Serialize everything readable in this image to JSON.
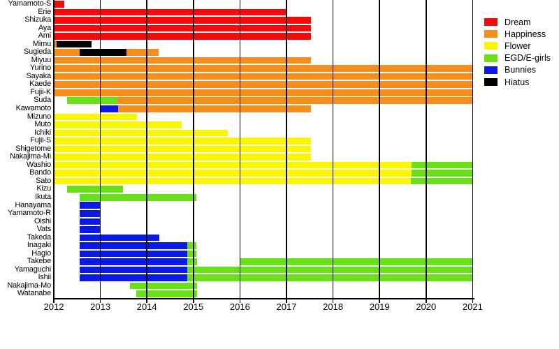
{
  "page": {
    "background": "#ffffff"
  },
  "chart_data": {
    "type": "gantt",
    "title": "",
    "x_axis": {
      "min": 2012,
      "max": 2021,
      "ticks": [
        2012,
        2013,
        2014,
        2015,
        2016,
        2017,
        2018,
        2019,
        2020,
        2021
      ]
    },
    "grid": true,
    "legend_position": "top-right",
    "legend": [
      {
        "label": "Dream",
        "color": "#f50a0a"
      },
      {
        "label": "Happiness",
        "color": "#f78d1b"
      },
      {
        "label": "Flower",
        "color": "#fcf500"
      },
      {
        "label": "EGD/E-girls",
        "color": "#69e117"
      },
      {
        "label": "Bunnies",
        "color": "#0a18e8"
      },
      {
        "label": "Hiatus",
        "color": "#000000"
      }
    ],
    "rows": [
      {
        "name": "Yamamoto-S",
        "segments": [
          {
            "group": "Dream",
            "start": 2012.0,
            "end": 2012.23
          }
        ]
      },
      {
        "name": "Erie",
        "segments": [
          {
            "group": "Dream",
            "start": 2012.0,
            "end": 2017.0
          }
        ]
      },
      {
        "name": "Shizuka",
        "segments": [
          {
            "group": "Dream",
            "start": 2012.0,
            "end": 2017.52
          }
        ]
      },
      {
        "name": "Aya",
        "segments": [
          {
            "group": "Dream",
            "start": 2012.0,
            "end": 2017.52
          }
        ]
      },
      {
        "name": "Ami",
        "segments": [
          {
            "group": "Dream",
            "start": 2012.0,
            "end": 2017.52
          }
        ]
      },
      {
        "name": "Mimu",
        "segments": [
          {
            "group": "Happiness",
            "start": 2012.0,
            "end": 2012.06
          },
          {
            "group": "Hiatus",
            "start": 2012.06,
            "end": 2012.81
          }
        ]
      },
      {
        "name": "Sugieda",
        "segments": [
          {
            "group": "Happiness",
            "start": 2012.0,
            "end": 2012.55
          },
          {
            "group": "Hiatus",
            "start": 2012.55,
            "end": 2013.56
          },
          {
            "group": "Happiness",
            "start": 2013.56,
            "end": 2014.25
          }
        ]
      },
      {
        "name": "Miyuu",
        "segments": [
          {
            "group": "Happiness",
            "start": 2012.0,
            "end": 2017.52
          }
        ]
      },
      {
        "name": "Yurino",
        "segments": [
          {
            "group": "Happiness",
            "start": 2012.0,
            "end": 2021.0
          }
        ]
      },
      {
        "name": "Sayaka",
        "segments": [
          {
            "group": "Happiness",
            "start": 2012.0,
            "end": 2021.0
          }
        ]
      },
      {
        "name": "Kaede",
        "segments": [
          {
            "group": "Happiness",
            "start": 2012.0,
            "end": 2021.0
          }
        ]
      },
      {
        "name": "Fujii-K",
        "segments": [
          {
            "group": "Happiness",
            "start": 2012.0,
            "end": 2021.0
          }
        ]
      },
      {
        "name": "Suda",
        "segments": [
          {
            "group": "EGD/E-girls",
            "start": 2012.29,
            "end": 2013.37
          },
          {
            "group": "Happiness",
            "start": 2013.37,
            "end": 2021.0
          }
        ]
      },
      {
        "name": "Kawamoto",
        "segments": [
          {
            "group": "Bunnies",
            "start": 2013.0,
            "end": 2013.38
          },
          {
            "group": "Happiness",
            "start": 2013.38,
            "end": 2017.52
          }
        ]
      },
      {
        "name": "Mizuno",
        "segments": [
          {
            "group": "Flower",
            "start": 2012.0,
            "end": 2013.79
          }
        ]
      },
      {
        "name": "Muto",
        "segments": [
          {
            "group": "Flower",
            "start": 2012.0,
            "end": 2014.75
          }
        ]
      },
      {
        "name": "Ichiki",
        "segments": [
          {
            "group": "Flower",
            "start": 2012.0,
            "end": 2015.74
          }
        ]
      },
      {
        "name": "Fujii-S",
        "segments": [
          {
            "group": "Flower",
            "start": 2012.0,
            "end": 2017.52
          }
        ]
      },
      {
        "name": "Shigetome",
        "segments": [
          {
            "group": "Flower",
            "start": 2012.0,
            "end": 2017.52
          }
        ]
      },
      {
        "name": "Nakajima-Mi",
        "segments": [
          {
            "group": "Flower",
            "start": 2012.0,
            "end": 2017.52
          }
        ]
      },
      {
        "name": "Washio",
        "segments": [
          {
            "group": "Flower",
            "start": 2012.0,
            "end": 2019.69
          },
          {
            "group": "EGD/E-girls",
            "start": 2019.69,
            "end": 2021.0
          }
        ]
      },
      {
        "name": "Bando",
        "segments": [
          {
            "group": "Flower",
            "start": 2012.0,
            "end": 2019.69
          },
          {
            "group": "EGD/E-girls",
            "start": 2019.69,
            "end": 2021.0
          }
        ]
      },
      {
        "name": "Sato",
        "segments": [
          {
            "group": "Flower",
            "start": 2012.0,
            "end": 2019.68
          },
          {
            "group": "EGD/E-girls",
            "start": 2019.68,
            "end": 2021.0
          }
        ]
      },
      {
        "name": "Kizu",
        "segments": [
          {
            "group": "EGD/E-girls",
            "start": 2012.29,
            "end": 2013.49
          }
        ]
      },
      {
        "name": "Ikuta",
        "segments": [
          {
            "group": "EGD/E-girls",
            "start": 2012.56,
            "end": 2015.06
          }
        ]
      },
      {
        "name": "Hanayama",
        "segments": [
          {
            "group": "Bunnies",
            "start": 2012.56,
            "end": 2013.01
          }
        ]
      },
      {
        "name": "Yamamoto-R",
        "segments": [
          {
            "group": "Bunnies",
            "start": 2012.56,
            "end": 2013.01
          }
        ]
      },
      {
        "name": "Oishi",
        "segments": [
          {
            "group": "Bunnies",
            "start": 2012.56,
            "end": 2013.01
          }
        ]
      },
      {
        "name": "Vats",
        "segments": [
          {
            "group": "Bunnies",
            "start": 2012.56,
            "end": 2013.01
          }
        ]
      },
      {
        "name": "Takeda",
        "segments": [
          {
            "group": "Bunnies",
            "start": 2012.56,
            "end": 2014.27
          }
        ]
      },
      {
        "name": "Inagaki",
        "segments": [
          {
            "group": "Bunnies",
            "start": 2012.56,
            "end": 2014.87
          },
          {
            "group": "EGD/E-girls",
            "start": 2014.87,
            "end": 2015.06
          }
        ]
      },
      {
        "name": "Hagio",
        "segments": [
          {
            "group": "Bunnies",
            "start": 2012.56,
            "end": 2014.87
          },
          {
            "group": "EGD/E-girls",
            "start": 2014.87,
            "end": 2015.06
          }
        ]
      },
      {
        "name": "Takebe",
        "segments": [
          {
            "group": "Bunnies",
            "start": 2012.56,
            "end": 2014.87
          },
          {
            "group": "EGD/E-girls",
            "start": 2014.87,
            "end": 2015.08
          },
          {
            "group": "EGD/E-girls",
            "start": 2016.0,
            "end": 2021.0
          }
        ]
      },
      {
        "name": "Yamaguchi",
        "segments": [
          {
            "group": "Bunnies",
            "start": 2012.56,
            "end": 2014.87
          },
          {
            "group": "EGD/E-girls",
            "start": 2014.87,
            "end": 2021.0
          }
        ]
      },
      {
        "name": "Ishii",
        "segments": [
          {
            "group": "Bunnies",
            "start": 2012.56,
            "end": 2014.87
          },
          {
            "group": "EGD/E-girls",
            "start": 2014.87,
            "end": 2021.0
          }
        ]
      },
      {
        "name": "Nakajima-Mo",
        "segments": [
          {
            "group": "EGD/E-girls",
            "start": 2013.64,
            "end": 2015.08
          }
        ]
      },
      {
        "name": "Watanabe",
        "segments": [
          {
            "group": "EGD/E-girls",
            "start": 2013.77,
            "end": 2015.08
          }
        ]
      }
    ]
  }
}
